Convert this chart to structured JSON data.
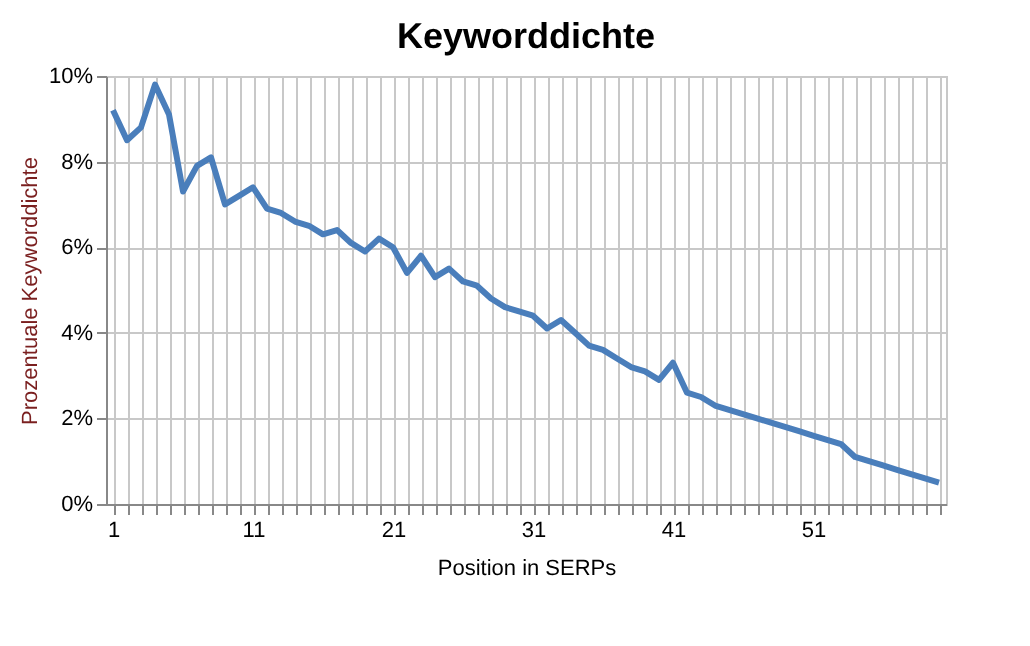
{
  "chart_data": {
    "type": "line",
    "title": "Keyworddichte",
    "xlabel": "Position in SERPs",
    "ylabel": "Prozentuale Keyworddichte",
    "categories": [
      "1",
      null,
      null,
      null,
      null,
      null,
      null,
      null,
      null,
      null,
      "11",
      null,
      null,
      null,
      null,
      null,
      null,
      null,
      null,
      null,
      "21",
      null,
      null,
      null,
      null,
      null,
      null,
      null,
      null,
      null,
      "31",
      null,
      null,
      null,
      null,
      null,
      null,
      null,
      null,
      null,
      "41",
      null,
      null,
      null,
      null,
      null,
      null,
      null,
      null,
      null,
      "51",
      null,
      null,
      null,
      null,
      null,
      null,
      null,
      null,
      null
    ],
    "series": [
      {
        "color": "#4a7ebb",
        "values": [
          9.2,
          8.5,
          8.8,
          9.8,
          9.1,
          7.3,
          7.9,
          8.1,
          7.0,
          7.2,
          7.4,
          6.9,
          6.8,
          6.6,
          6.5,
          6.3,
          6.4,
          6.1,
          5.9,
          6.2,
          6.0,
          5.4,
          5.8,
          5.3,
          5.5,
          5.2,
          5.1,
          4.8,
          4.6,
          4.5,
          4.4,
          4.1,
          4.3,
          4.0,
          3.7,
          3.6,
          3.4,
          3.2,
          3.1,
          2.9,
          3.3,
          2.6,
          2.5,
          2.3,
          2.2,
          2.1,
          2.0,
          1.9,
          1.8,
          1.7,
          1.6,
          1.5,
          1.4,
          1.1,
          1.0,
          0.9,
          0.8,
          0.7,
          0.6,
          0.5
        ]
      }
    ],
    "ylim": [
      0,
      10
    ],
    "yticks": [
      {
        "value": 0,
        "label": "0%"
      },
      {
        "value": 2,
        "label": "2%"
      },
      {
        "value": 4,
        "label": "4%"
      },
      {
        "value": 6,
        "label": "6%"
      },
      {
        "value": 8,
        "label": "8%"
      },
      {
        "value": 10,
        "label": "10%"
      }
    ],
    "grid": true,
    "marker": "none",
    "line_style": "solid"
  }
}
